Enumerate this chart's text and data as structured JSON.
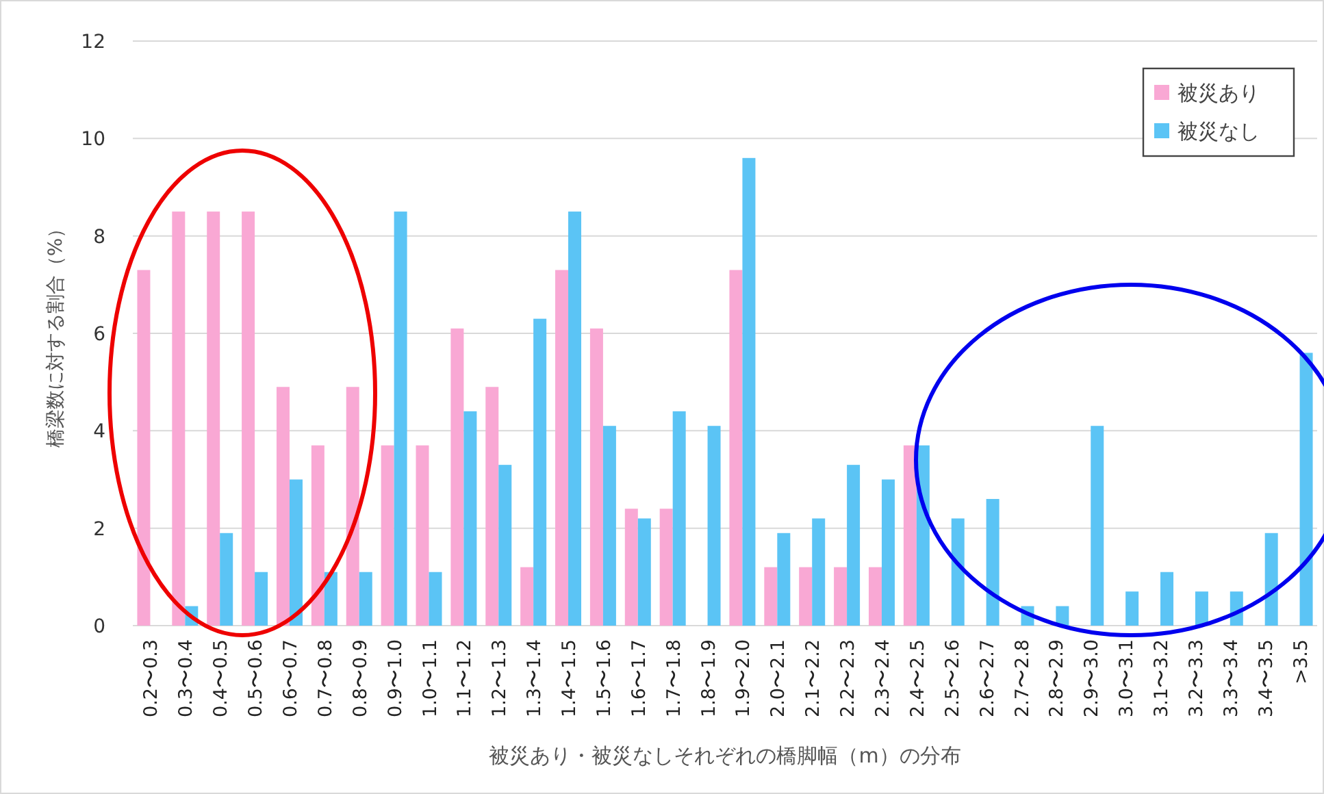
{
  "chart_data": {
    "type": "bar",
    "xlabel": "被災あり・被災なしそれぞれの橋脚幅（m）の分布",
    "ylabel": "橋梁数に対する割合（%）",
    "categories": [
      "0.2〜0.3",
      "0.3〜0.4",
      "0.4〜0.5",
      "0.5〜0.6",
      "0.6〜0.7",
      "0.7〜0.8",
      "0.8〜0.9",
      "0.9〜1.0",
      "1.0〜1.1",
      "1.1〜1.2",
      "1.2〜1.3",
      "1.3〜1.4",
      "1.4〜1.5",
      "1.5〜1.6",
      "1.6〜1.7",
      "1.7〜1.8",
      "1.8〜1.9",
      "1.9〜2.0",
      "2.0〜2.1",
      "2.1〜2.2",
      "2.2〜2.3",
      "2.3〜2.4",
      "2.4〜2.5",
      "2.5〜2.6",
      "2.6〜2.7",
      "2.7〜2.8",
      "2.8〜2.9",
      "2.9〜3.0",
      "3.0〜3.1",
      "3.1〜3.2",
      "3.2〜3.3",
      "3.3〜3.4",
      "3.4〜3.5",
      ">3.5"
    ],
    "series": [
      {
        "name": "被災あり",
        "color": "#f9a8d4",
        "values": [
          7.3,
          8.5,
          8.5,
          8.5,
          4.9,
          3.7,
          4.9,
          3.7,
          3.7,
          6.1,
          4.9,
          1.2,
          7.3,
          6.1,
          2.4,
          2.4,
          0,
          7.3,
          1.2,
          1.2,
          1.2,
          1.2,
          3.7,
          0,
          0,
          0,
          0,
          0,
          0,
          0,
          0,
          0,
          0,
          0
        ]
      },
      {
        "name": "被災なし",
        "color": "#5bc4f5",
        "values": [
          0,
          0.4,
          1.9,
          1.1,
          3.0,
          1.1,
          1.1,
          8.5,
          1.1,
          4.4,
          3.3,
          6.3,
          8.5,
          4.1,
          2.2,
          4.4,
          4.1,
          9.6,
          1.9,
          2.2,
          3.3,
          3.0,
          3.7,
          2.2,
          2.6,
          0.4,
          0.4,
          4.1,
          0.7,
          1.1,
          0.7,
          0.7,
          1.9,
          5.6
        ]
      }
    ],
    "ylim": [
      0,
      12
    ],
    "yticks": [
      0,
      2,
      4,
      6,
      8,
      10,
      12
    ],
    "grid": "y",
    "legend": "top right"
  }
}
